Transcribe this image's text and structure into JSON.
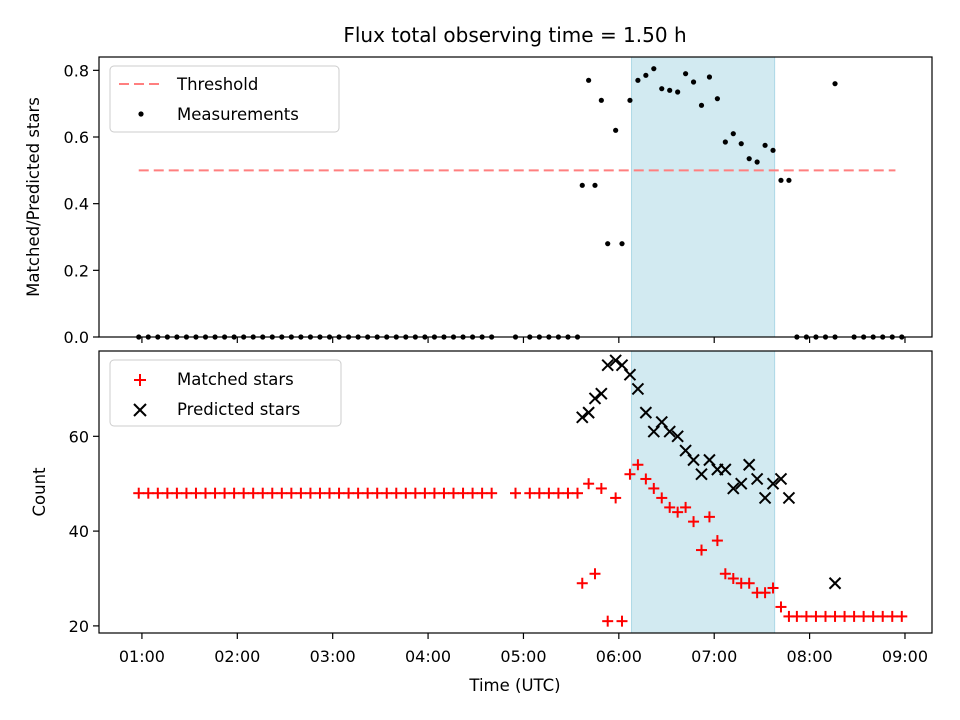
{
  "chart_data": {
    "title": "Flux total observing time = 1.50 h",
    "xlabel": "Time (UTC)",
    "xlim": [
      "00:33",
      "09:17"
    ],
    "xticks": [
      "01:00",
      "02:00",
      "03:00",
      "04:00",
      "05:00",
      "06:00",
      "07:00",
      "08:00",
      "09:00"
    ],
    "shaded_interval": {
      "start": "06:08",
      "end": "07:38",
      "color": "#add8e6"
    },
    "panels": [
      {
        "type": "scatter",
        "ylabel": "Matched/Predicted stars",
        "ylim": [
          0,
          0.84
        ],
        "yticks": [
          "0.0",
          "0.2",
          "0.4",
          "0.6",
          "0.8"
        ],
        "legend_position": "top-left",
        "threshold": {
          "name": "Threshold",
          "value": 0.5,
          "x_start": "00:58",
          "x_end": "08:54",
          "color": "#ff7f7f",
          "style": "dashed"
        },
        "series": [
          {
            "name": "Measurements",
            "marker": "dot",
            "color": "#000000",
            "points": [
              [
                "00:58",
                0
              ],
              [
                "01:04",
                0
              ],
              [
                "01:10",
                0
              ],
              [
                "01:16",
                0
              ],
              [
                "01:22",
                0
              ],
              [
                "01:28",
                0
              ],
              [
                "01:34",
                0
              ],
              [
                "01:40",
                0
              ],
              [
                "01:46",
                0
              ],
              [
                "01:52",
                0
              ],
              [
                "01:58",
                0
              ],
              [
                "02:04",
                0
              ],
              [
                "02:10",
                0
              ],
              [
                "02:16",
                0
              ],
              [
                "02:22",
                0
              ],
              [
                "02:28",
                0
              ],
              [
                "02:34",
                0
              ],
              [
                "02:40",
                0
              ],
              [
                "02:46",
                0
              ],
              [
                "02:52",
                0
              ],
              [
                "02:58",
                0
              ],
              [
                "03:04",
                0
              ],
              [
                "03:10",
                0
              ],
              [
                "03:16",
                0
              ],
              [
                "03:22",
                0
              ],
              [
                "03:28",
                0
              ],
              [
                "03:34",
                0
              ],
              [
                "03:40",
                0
              ],
              [
                "03:46",
                0
              ],
              [
                "03:52",
                0
              ],
              [
                "03:58",
                0
              ],
              [
                "04:04",
                0
              ],
              [
                "04:10",
                0
              ],
              [
                "04:16",
                0
              ],
              [
                "04:22",
                0
              ],
              [
                "04:28",
                0
              ],
              [
                "04:34",
                0
              ],
              [
                "04:40",
                0
              ],
              [
                "04:55",
                0
              ],
              [
                "05:04",
                0
              ],
              [
                "05:10",
                0
              ],
              [
                "05:16",
                0
              ],
              [
                "05:22",
                0
              ],
              [
                "05:28",
                0
              ],
              [
                "05:34",
                0
              ],
              [
                "05:37",
                0.455
              ],
              [
                "05:41",
                0.77
              ],
              [
                "05:45",
                0.455
              ],
              [
                "05:49",
                0.71
              ],
              [
                "05:53",
                0.28
              ],
              [
                "05:58",
                0.62
              ],
              [
                "06:02",
                0.28
              ],
              [
                "06:07",
                0.71
              ],
              [
                "06:12",
                0.77
              ],
              [
                "06:17",
                0.785
              ],
              [
                "06:22",
                0.805
              ],
              [
                "06:27",
                0.745
              ],
              [
                "06:32",
                0.74
              ],
              [
                "06:37",
                0.735
              ],
              [
                "06:42",
                0.79
              ],
              [
                "06:47",
                0.765
              ],
              [
                "06:52",
                0.695
              ],
              [
                "06:57",
                0.78
              ],
              [
                "07:02",
                0.715
              ],
              [
                "07:07",
                0.585
              ],
              [
                "07:12",
                0.61
              ],
              [
                "07:17",
                0.58
              ],
              [
                "07:22",
                0.535
              ],
              [
                "07:27",
                0.525
              ],
              [
                "07:32",
                0.575
              ],
              [
                "07:37",
                0.56
              ],
              [
                "07:42",
                0.47
              ],
              [
                "07:47",
                0.47
              ],
              [
                "07:52",
                0
              ],
              [
                "07:58",
                0
              ],
              [
                "08:04",
                0
              ],
              [
                "08:10",
                0
              ],
              [
                "08:16",
                0
              ],
              [
                "08:16",
                0.76
              ],
              [
                "08:28",
                0
              ],
              [
                "08:34",
                0
              ],
              [
                "08:40",
                0
              ],
              [
                "08:46",
                0
              ],
              [
                "08:52",
                0
              ],
              [
                "08:58",
                0
              ]
            ]
          }
        ]
      },
      {
        "type": "scatter",
        "ylabel": "Count",
        "ylim": [
          18.5,
          78
        ],
        "yticks": [
          "20",
          "40",
          "60"
        ],
        "legend_position": "top-left",
        "series": [
          {
            "name": "Matched stars",
            "marker": "plus",
            "color": "#ff0000",
            "points": [
              [
                "00:58",
                48
              ],
              [
                "01:04",
                48
              ],
              [
                "01:10",
                48
              ],
              [
                "01:16",
                48
              ],
              [
                "01:22",
                48
              ],
              [
                "01:28",
                48
              ],
              [
                "01:34",
                48
              ],
              [
                "01:40",
                48
              ],
              [
                "01:46",
                48
              ],
              [
                "01:52",
                48
              ],
              [
                "01:58",
                48
              ],
              [
                "02:04",
                48
              ],
              [
                "02:10",
                48
              ],
              [
                "02:16",
                48
              ],
              [
                "02:22",
                48
              ],
              [
                "02:28",
                48
              ],
              [
                "02:34",
                48
              ],
              [
                "02:40",
                48
              ],
              [
                "02:46",
                48
              ],
              [
                "02:52",
                48
              ],
              [
                "02:58",
                48
              ],
              [
                "03:04",
                48
              ],
              [
                "03:10",
                48
              ],
              [
                "03:16",
                48
              ],
              [
                "03:22",
                48
              ],
              [
                "03:28",
                48
              ],
              [
                "03:34",
                48
              ],
              [
                "03:40",
                48
              ],
              [
                "03:46",
                48
              ],
              [
                "03:52",
                48
              ],
              [
                "03:58",
                48
              ],
              [
                "04:04",
                48
              ],
              [
                "04:10",
                48
              ],
              [
                "04:16",
                48
              ],
              [
                "04:22",
                48
              ],
              [
                "04:28",
                48
              ],
              [
                "04:34",
                48
              ],
              [
                "04:40",
                48
              ],
              [
                "04:55",
                48
              ],
              [
                "05:04",
                48
              ],
              [
                "05:10",
                48
              ],
              [
                "05:16",
                48
              ],
              [
                "05:22",
                48
              ],
              [
                "05:28",
                48
              ],
              [
                "05:34",
                48
              ],
              [
                "05:37",
                29
              ],
              [
                "05:41",
                50
              ],
              [
                "05:45",
                31
              ],
              [
                "05:49",
                49
              ],
              [
                "05:53",
                21
              ],
              [
                "05:58",
                47
              ],
              [
                "06:02",
                21
              ],
              [
                "06:07",
                52
              ],
              [
                "06:12",
                54
              ],
              [
                "06:17",
                51
              ],
              [
                "06:22",
                49
              ],
              [
                "06:27",
                47
              ],
              [
                "06:32",
                45
              ],
              [
                "06:37",
                44
              ],
              [
                "06:42",
                45
              ],
              [
                "06:47",
                42
              ],
              [
                "06:52",
                36
              ],
              [
                "06:57",
                43
              ],
              [
                "07:02",
                38
              ],
              [
                "07:07",
                31
              ],
              [
                "07:12",
                30
              ],
              [
                "07:17",
                29
              ],
              [
                "07:22",
                29
              ],
              [
                "07:27",
                27
              ],
              [
                "07:32",
                27
              ],
              [
                "07:37",
                28
              ],
              [
                "07:42",
                24
              ],
              [
                "07:47",
                22
              ],
              [
                "07:52",
                22
              ],
              [
                "07:58",
                22
              ],
              [
                "08:04",
                22
              ],
              [
                "08:10",
                22
              ],
              [
                "08:16",
                22
              ],
              [
                "08:22",
                22
              ],
              [
                "08:28",
                22
              ],
              [
                "08:34",
                22
              ],
              [
                "08:40",
                22
              ],
              [
                "08:46",
                22
              ],
              [
                "08:52",
                22
              ],
              [
                "08:58",
                22
              ]
            ]
          },
          {
            "name": "Predicted stars",
            "marker": "x",
            "color": "#000000",
            "points": [
              [
                "05:37",
                64
              ],
              [
                "05:41",
                65
              ],
              [
                "05:45",
                68
              ],
              [
                "05:49",
                69
              ],
              [
                "05:53",
                75
              ],
              [
                "05:58",
                76
              ],
              [
                "06:02",
                75
              ],
              [
                "06:07",
                73
              ],
              [
                "06:12",
                70
              ],
              [
                "06:17",
                65
              ],
              [
                "06:22",
                61
              ],
              [
                "06:27",
                63
              ],
              [
                "06:32",
                61
              ],
              [
                "06:37",
                60
              ],
              [
                "06:42",
                57
              ],
              [
                "06:47",
                55
              ],
              [
                "06:52",
                52
              ],
              [
                "06:57",
                55
              ],
              [
                "07:02",
                53
              ],
              [
                "07:07",
                53
              ],
              [
                "07:12",
                49
              ],
              [
                "07:17",
                50
              ],
              [
                "07:22",
                54
              ],
              [
                "07:27",
                51
              ],
              [
                "07:32",
                47
              ],
              [
                "07:37",
                50
              ],
              [
                "07:42",
                51
              ],
              [
                "07:47",
                47
              ],
              [
                "08:16",
                29
              ]
            ]
          }
        ]
      }
    ]
  }
}
